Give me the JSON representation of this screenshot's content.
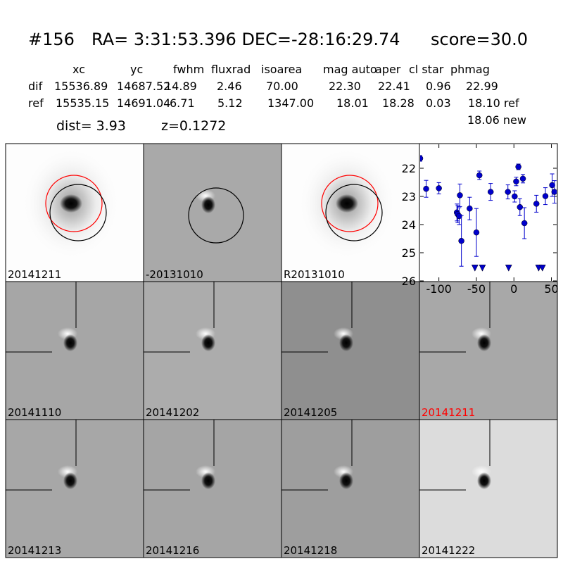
{
  "header": {
    "id": "#156",
    "coords": "RA= 3:31:53.396 DEC=-28:16:29.74",
    "score": "score=30.0"
  },
  "table": {
    "columns": [
      "xc",
      "yc",
      "fwhm",
      "fluxrad",
      "isoarea",
      "mag auto",
      "aper",
      "cl star",
      "phmag"
    ],
    "rows": [
      [
        "dif",
        "15536.89",
        "14687.52",
        "14.89",
        "2.46",
        "70.00",
        "22.30",
        "22.41",
        "0.96",
        "22.99"
      ],
      [
        "ref",
        "15535.15",
        "14691.04",
        "6.71",
        "5.12",
        "1347.00",
        "18.01",
        "18.28",
        "0.03",
        "18.10 ref"
      ]
    ],
    "extra": "18.06 new",
    "dist": "dist=  3.93",
    "z": "z=0.1272"
  },
  "panels": [
    "20141211",
    "-20131010",
    "R20131010",
    "20141110",
    "20141202",
    "20141205",
    "20141211",
    "20141213",
    "20141216",
    "20141218",
    "20141222"
  ],
  "chart_data": {
    "type": "scatter",
    "xlim": [
      -125,
      57
    ],
    "ylim": [
      26,
      21.15
    ],
    "xticks": [
      -100,
      -50,
      0,
      50
    ],
    "yticks": [
      22,
      23,
      24,
      25,
      26
    ],
    "series": [
      {
        "color": "#0000cc",
        "marker": "o",
        "x": [
          -125,
          -117,
          -100,
          -76,
          -75,
          -73,
          -72,
          -70,
          -59,
          -50,
          -46,
          -31,
          -8,
          1,
          3,
          6,
          8,
          12,
          14,
          30,
          42,
          51,
          54
        ],
        "values": [
          21.65,
          22.73,
          22.71,
          23.57,
          23.63,
          23.7,
          22.96,
          24.58,
          23.43,
          24.28,
          22.25,
          22.84,
          22.84,
          23.0,
          22.47,
          21.95,
          23.38,
          22.37,
          23.95,
          23.26,
          22.99,
          22.6,
          22.84
        ],
        "errors": [
          0.1,
          0.3,
          0.2,
          0.3,
          0.3,
          0.3,
          0.4,
          0.9,
          0.4,
          0.85,
          0.15,
          0.3,
          0.25,
          0.2,
          0.15,
          0.1,
          0.3,
          0.15,
          0.55,
          0.3,
          0.3,
          0.4,
          0.4
        ]
      },
      {
        "color": "#0000cc",
        "marker": "v",
        "x": [
          -52,
          -42,
          -7,
          33,
          38
        ],
        "values": [
          25.53,
          25.53,
          25.53,
          25.53,
          25.53
        ]
      }
    ]
  }
}
